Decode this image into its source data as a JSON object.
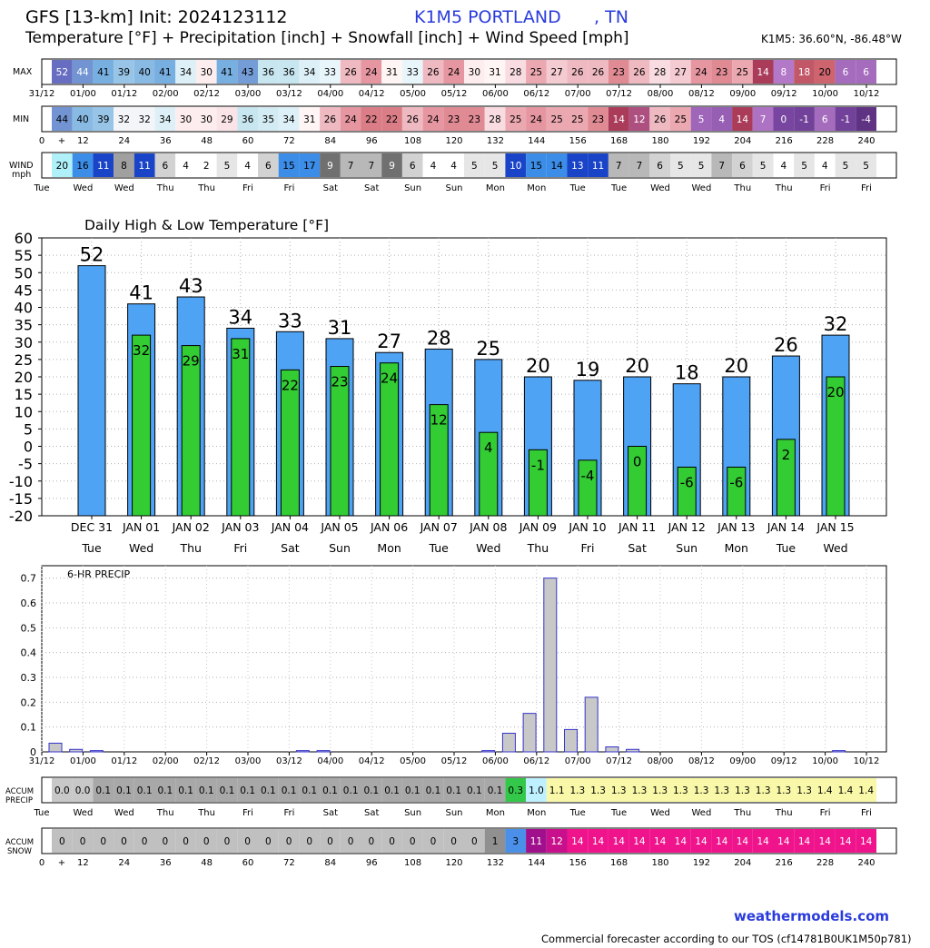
{
  "header": {
    "title": "GFS [13-km] Init: 2024123112",
    "station": "K1M5 PORTLAND      , TN",
    "subtitle": "Temperature [°F] + Precipitation [inch] + Snowfall [inch] + Wind Speed [mph]",
    "coordinates": "K1M5: 36.60°N, -86.48°W"
  },
  "time_labels": [
    "31/12",
    "01/00",
    "01/12",
    "02/00",
    "02/12",
    "03/00",
    "03/12",
    "04/00",
    "04/12",
    "05/00",
    "05/12",
    "06/00",
    "06/12",
    "07/00",
    "07/12",
    "08/00",
    "08/12",
    "09/00",
    "09/12",
    "10/00",
    "10/12"
  ],
  "hour_labels": [
    "0",
    "+",
    "12",
    "24",
    "36",
    "48",
    "60",
    "72",
    "84",
    "96",
    "108",
    "120",
    "132",
    "144",
    "156",
    "168",
    "180",
    "192",
    "204",
    "216",
    "228",
    "240"
  ],
  "day_labels_wind": [
    "Tue",
    "Wed",
    "Wed",
    "Thu",
    "Thu",
    "Fri",
    "Fri",
    "Sat",
    "Sat",
    "Sun",
    "Sun",
    "Mon",
    "Mon",
    "Tue",
    "Tue",
    "Wed",
    "Wed",
    "Thu",
    "Thu",
    "Fri",
    "Fri"
  ],
  "day_labels_precip": [
    "Tue",
    "Wed",
    "Wed",
    "Thu",
    "Thu",
    "Fri",
    "Fri",
    "Sat",
    "Sat",
    "Sun",
    "Sun",
    "Mon",
    "Mon",
    "Tue",
    "Tue",
    "Wed",
    "Wed",
    "Thu",
    "Thu",
    "Fri",
    "Fri"
  ],
  "strips": {
    "max": {
      "label": "MAX",
      "values": [
        52,
        44,
        41,
        39,
        40,
        41,
        34,
        30,
        41,
        43,
        36,
        36,
        34,
        33,
        26,
        24,
        31,
        33,
        26,
        24,
        30,
        31,
        28,
        25,
        27,
        26,
        26,
        23,
        26,
        28,
        27,
        24,
        23,
        25,
        14,
        8,
        18,
        20,
        6,
        6
      ]
    },
    "min": {
      "label": "MIN",
      "values": [
        44,
        40,
        39,
        32,
        32,
        34,
        30,
        30,
        29,
        36,
        35,
        34,
        31,
        26,
        24,
        22,
        22,
        26,
        24,
        23,
        23,
        28,
        25,
        24,
        25,
        25,
        23,
        14,
        12,
        26,
        25,
        5,
        4,
        14,
        7,
        0,
        -1,
        6,
        -1,
        -4
      ]
    },
    "wind": {
      "label": "WIND",
      "unit": "mph",
      "values": [
        20,
        16,
        11,
        8,
        11,
        6,
        4,
        2,
        5,
        4,
        6,
        15,
        17,
        9,
        7,
        7,
        9,
        6,
        4,
        4,
        5,
        5,
        10,
        15,
        14,
        13,
        11,
        7,
        7,
        6,
        5,
        5,
        7,
        6,
        5,
        4,
        5,
        4,
        5,
        5
      ]
    },
    "accum_precip": {
      "label": "ACCUM",
      "label2": "PRECIP",
      "values": [
        "0.0",
        "0.0",
        "0.1",
        "0.1",
        "0.1",
        "0.1",
        "0.1",
        "0.1",
        "0.1",
        "0.1",
        "0.1",
        "0.1",
        "0.1",
        "0.1",
        "0.1",
        "0.1",
        "0.1",
        "0.1",
        "0.1",
        "0.1",
        "0.1",
        "0.1",
        "0.3",
        "1.0",
        "1.1",
        "1.3",
        "1.3",
        "1.3",
        "1.3",
        "1.3",
        "1.3",
        "1.3",
        "1.3",
        "1.3",
        "1.3",
        "1.3",
        "1.3",
        "1.4",
        "1.4",
        "1.4"
      ]
    },
    "accum_snow": {
      "label": "ACCUM",
      "label2": "SNOW",
      "values": [
        0,
        0,
        0,
        0,
        0,
        0,
        0,
        0,
        0,
        0,
        0,
        0,
        0,
        0,
        0,
        0,
        0,
        0,
        0,
        0,
        0,
        1,
        3,
        11,
        12,
        14,
        14,
        14,
        14,
        14,
        14,
        14,
        14,
        14,
        14,
        14,
        14,
        14,
        14,
        14
      ]
    }
  },
  "colors": {
    "temp_high_bar": "#4fa3f5",
    "temp_low_bar": "#33cc33",
    "precip_bar": "#c8c8c8",
    "precip_bar_stroke": "#3333cc",
    "link": "#2a3bdc"
  },
  "chart_data": [
    {
      "type": "bar",
      "title": "Daily High & Low Temperature [°F]",
      "categories": [
        "DEC 31",
        "JAN 01",
        "JAN 02",
        "JAN 03",
        "JAN 04",
        "JAN 05",
        "JAN 06",
        "JAN 07",
        "JAN 08",
        "JAN 09",
        "JAN 10",
        "JAN 11",
        "JAN 12",
        "JAN 13",
        "JAN 14",
        "JAN 15"
      ],
      "weekdays": [
        "Tue",
        "Wed",
        "Thu",
        "Fri",
        "Sat",
        "Sun",
        "Mon",
        "Tue",
        "Wed",
        "Thu",
        "Fri",
        "Sat",
        "Sun",
        "Mon",
        "Tue",
        "Wed"
      ],
      "series": [
        {
          "name": "High",
          "values": [
            52,
            41,
            43,
            34,
            33,
            31,
            27,
            28,
            25,
            20,
            19,
            20,
            18,
            20,
            26,
            32
          ]
        },
        {
          "name": "Low",
          "values": [
            null,
            32,
            29,
            31,
            22,
            23,
            24,
            12,
            4,
            -1,
            -4,
            0,
            -6,
            -6,
            2,
            20
          ]
        }
      ],
      "ylim": [
        -20,
        60
      ],
      "yticks": [
        60,
        55,
        50,
        45,
        40,
        35,
        30,
        25,
        20,
        15,
        10,
        5,
        0,
        -5,
        -10,
        -15,
        -20
      ],
      "grid": true
    },
    {
      "type": "bar",
      "title": "6-HR PRECIP",
      "x_hours": [
        0,
        6,
        12,
        18,
        24,
        30,
        36,
        42,
        48,
        54,
        60,
        66,
        72,
        78,
        84,
        90,
        96,
        102,
        108,
        114,
        120,
        126,
        132,
        138,
        144,
        150,
        156,
        162,
        168,
        174,
        180,
        186,
        192,
        198,
        204,
        210,
        216,
        222,
        228,
        234,
        240
      ],
      "values": [
        0.035,
        0.01,
        0.005,
        0,
        0,
        0,
        0,
        0,
        0,
        0,
        0,
        0,
        0.005,
        0.005,
        0,
        0,
        0,
        0,
        0,
        0,
        0,
        0.005,
        0.075,
        0.155,
        0.7,
        0.09,
        0.22,
        0.02,
        0.01,
        0,
        0,
        0,
        0,
        0,
        0,
        0,
        0,
        0,
        0.005,
        0,
        0
      ],
      "ylim": [
        0,
        0.75
      ],
      "yticks": [
        "0.7",
        "0.6",
        "0.5",
        "0.4",
        "0.3",
        "0.2",
        "0.1",
        "0"
      ],
      "grid": true
    }
  ]
}
